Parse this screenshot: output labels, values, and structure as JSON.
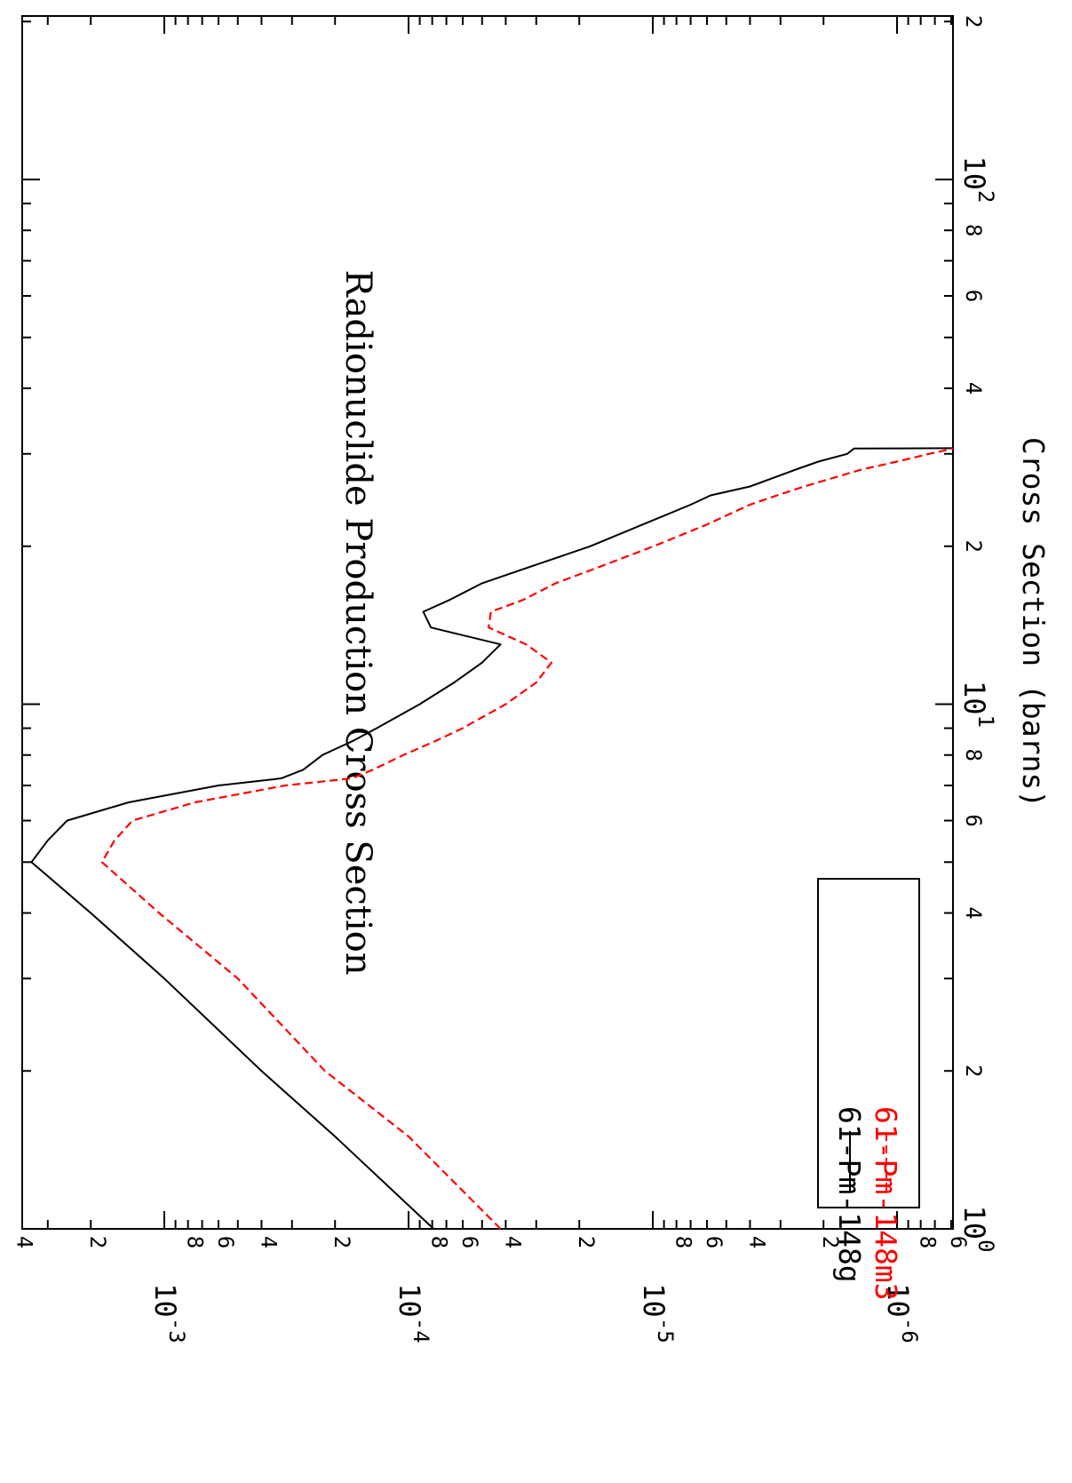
{
  "chart_data": {
    "type": "line",
    "title": "Radionuclide Production Cross Section",
    "ylabel": "Cross Section (barns)",
    "xlabel": "",
    "x_scale": "log",
    "y_scale": "log",
    "xlim": [
      1,
      200
    ],
    "ylim": [
      5.4e-07,
      0.0042
    ],
    "grid": false,
    "legend_position": "bottom-right",
    "x_major_ticks": [
      {
        "value": 1,
        "base": "10",
        "exp": "0"
      },
      {
        "value": 10,
        "base": "10",
        "exp": "1"
      },
      {
        "value": 100,
        "base": "10",
        "exp": "2"
      }
    ],
    "x_minor_labels": [
      {
        "value": 2,
        "label": "2"
      },
      {
        "value": 4,
        "label": "4"
      },
      {
        "value": 6,
        "label": "6"
      },
      {
        "value": 8,
        "label": "8"
      },
      {
        "value": 20,
        "label": "2"
      },
      {
        "value": 40,
        "label": "4"
      },
      {
        "value": 60,
        "label": "6"
      },
      {
        "value": 80,
        "label": "8"
      },
      {
        "value": 200,
        "label": "2"
      }
    ],
    "y_major_ticks": [
      {
        "value": 0.001,
        "base": "10",
        "exp": "-3"
      },
      {
        "value": 0.0001,
        "base": "10",
        "exp": "-4"
      },
      {
        "value": 1e-05,
        "base": "10",
        "exp": "-5"
      },
      {
        "value": 1e-06,
        "base": "10",
        "exp": "-6"
      }
    ],
    "y_minor_labels": [
      {
        "value": 0.004,
        "label": "4"
      },
      {
        "value": 0.002,
        "label": "2"
      },
      {
        "value": 0.0008,
        "label": "8"
      },
      {
        "value": 0.0006,
        "label": "6"
      },
      {
        "value": 0.0004,
        "label": "4"
      },
      {
        "value": 0.0002,
        "label": "2"
      },
      {
        "value": 8e-05,
        "label": "8"
      },
      {
        "value": 6e-05,
        "label": "6"
      },
      {
        "value": 4e-05,
        "label": "4"
      },
      {
        "value": 2e-05,
        "label": "2"
      },
      {
        "value": 8e-06,
        "label": "8"
      },
      {
        "value": 6e-06,
        "label": "6"
      },
      {
        "value": 4e-06,
        "label": "4"
      },
      {
        "value": 2e-06,
        "label": "2"
      },
      {
        "value": 8e-07,
        "label": "8"
      },
      {
        "value": 6e-07,
        "label": "6"
      }
    ],
    "series": [
      {
        "name": "61-Pm-148g",
        "color": "#000000",
        "dash": "solid",
        "x": [
          1.0,
          1.5,
          2.0,
          3.0,
          4.0,
          5.0,
          5.5,
          6.0,
          6.5,
          7.0,
          7.2,
          7.23,
          7.5,
          8.0,
          8.5,
          9.0,
          10.0,
          11.0,
          12.0,
          13.0,
          14.0,
          15.0,
          15.8,
          17.0,
          18.0,
          20.0,
          22.0,
          24.0,
          25.0,
          26.0,
          28.0,
          29.0,
          30.0,
          30.7,
          30.75
        ],
        "y": [
          7.9e-05,
          0.0002,
          0.0004,
          0.001,
          0.002,
          0.0035,
          0.003,
          0.0025,
          0.0014,
          0.0006,
          0.00035,
          0.00033,
          0.00027,
          0.000225,
          0.00017,
          0.000135,
          9e-05,
          6.5e-05,
          5e-05,
          4.2e-05,
          8.1e-05,
          8.7e-05,
          6.8e-05,
          5e-05,
          3.5e-05,
          1.8e-05,
          1.1e-05,
          7e-06,
          5.8e-06,
          4e-06,
          2.6e-06,
          2.1e-06,
          1.6e-06,
          1.5e-06,
          5.4e-07
        ]
      },
      {
        "name": "61-Pm-148m3",
        "color": "#ff0000",
        "dash": "dashed",
        "x": [
          1.0,
          1.5,
          2.0,
          3.0,
          4.0,
          5.0,
          5.5,
          6.0,
          6.5,
          7.0,
          7.2,
          7.23,
          7.5,
          8.0,
          8.5,
          9.0,
          10.0,
          11.0,
          12.0,
          13.0,
          14.0,
          15.0,
          15.8,
          17.0,
          18.0,
          20.0,
          22.0,
          24.0,
          25.0,
          26.0,
          28.0,
          29.0,
          30.0,
          30.7
        ],
        "y": [
          4.2e-05,
          0.0001,
          0.00022,
          0.0005,
          0.00105,
          0.0018,
          0.0016,
          0.00135,
          0.00075,
          0.00032,
          0.00018,
          0.00017,
          0.00014,
          0.000105,
          7.8e-05,
          6e-05,
          4e-05,
          3e-05,
          2.6e-05,
          3.3e-05,
          4.7e-05,
          4.6e-05,
          3.4e-05,
          2.5e-05,
          1.8e-05,
          9.9e-06,
          6e-06,
          4e-06,
          3.1e-06,
          2.4e-06,
          1.4e-06,
          1e-06,
          7.4e-07,
          5.5e-07
        ]
      }
    ]
  }
}
